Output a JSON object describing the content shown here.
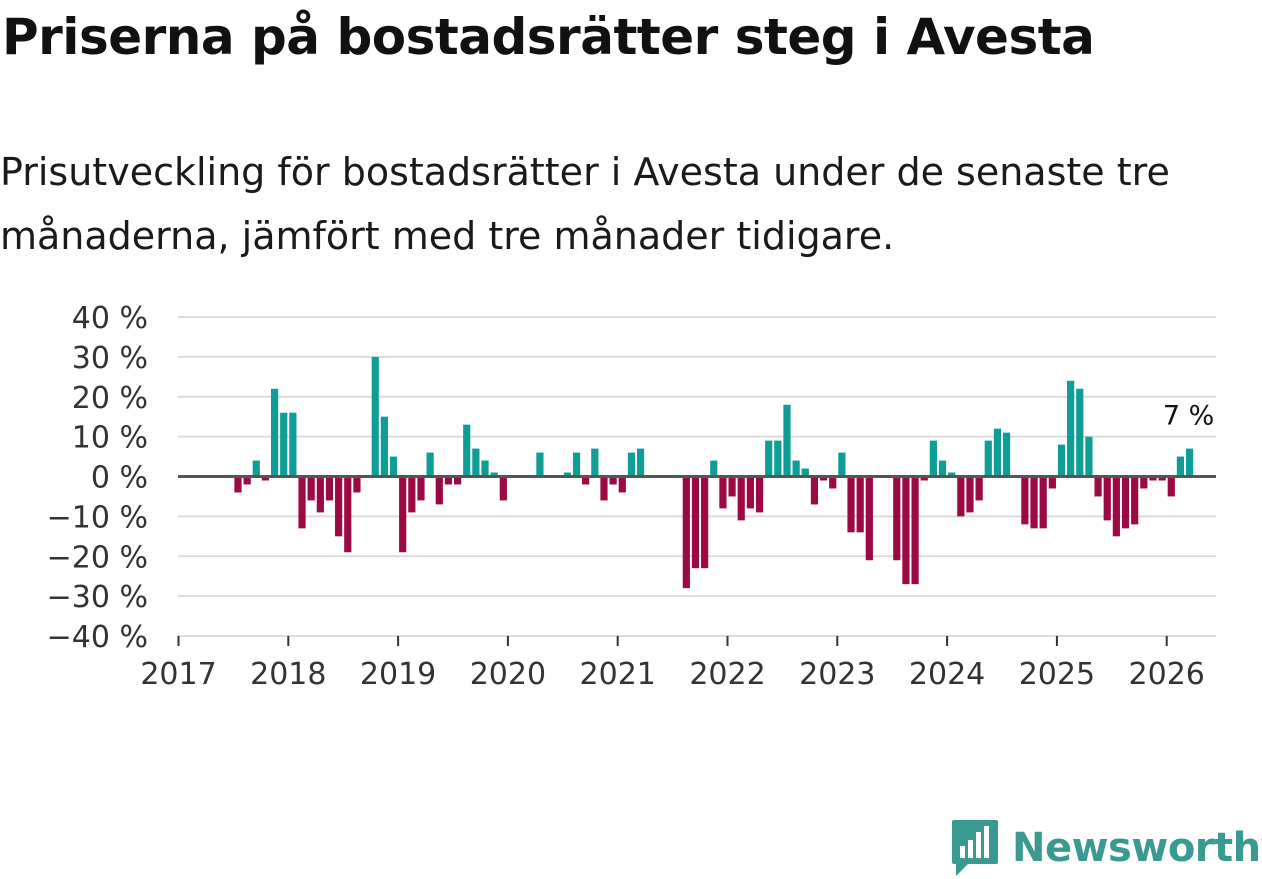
{
  "colors": {
    "positive": "#0f9e96",
    "negative": "#9c0a45",
    "grid": "#dcdcdc",
    "zero": "#555555",
    "brand": "#3a9a91"
  },
  "brand": {
    "name": "Newsworthy",
    "icon": "bar-chart-bubble-icon"
  },
  "chart_data": {
    "type": "bar",
    "title": "Priserna på bostadsrätter steg i Avesta",
    "subtitle": "Prisutveckling för bostadsrätter i Avesta under de senaste tre månaderna, jämfört med tre månader tidigare.",
    "ylim": [
      -40,
      40
    ],
    "yticks": [
      {
        "value": 40,
        "label": "40 %"
      },
      {
        "value": 30,
        "label": "30 %"
      },
      {
        "value": 20,
        "label": "20 %"
      },
      {
        "value": 10,
        "label": "10 %"
      },
      {
        "value": 0,
        "label": "0 %"
      },
      {
        "value": -10,
        "label": "−10 %"
      },
      {
        "value": -20,
        "label": "−20 %"
      },
      {
        "value": -30,
        "label": "−30 %"
      },
      {
        "value": -40,
        "label": "−40 %"
      }
    ],
    "xticks": [
      "2017",
      "2018",
      "2019",
      "2020",
      "2021",
      "2022",
      "2023",
      "2024",
      "2025",
      "2026"
    ],
    "start": "2017-01",
    "values": [
      null,
      null,
      null,
      null,
      null,
      null,
      -4,
      -2,
      4,
      -1,
      22,
      16,
      16,
      -13,
      -6,
      -9,
      -6,
      -15,
      -19,
      -4,
      null,
      30,
      15,
      5,
      -19,
      -9,
      -6,
      6,
      -7,
      -2,
      -2,
      13,
      7,
      4,
      1,
      -6,
      null,
      null,
      null,
      6,
      null,
      null,
      1,
      6,
      -2,
      7,
      -6,
      -2,
      -4,
      6,
      7,
      null,
      null,
      null,
      null,
      -28,
      -23,
      -23,
      4,
      -8,
      -5,
      -11,
      -8,
      -9,
      9,
      9,
      18,
      4,
      2,
      -7,
      -1,
      -3,
      6,
      -14,
      -14,
      -21,
      null,
      null,
      -21,
      -27,
      -27,
      -1,
      9,
      4,
      1,
      -10,
      -9,
      -6,
      9,
      12,
      11,
      null,
      -12,
      -13,
      -13,
      -3,
      8,
      24,
      22,
      10,
      -5,
      -11,
      -15,
      -13,
      -12,
      -3,
      -1,
      -1,
      -5,
      5,
      7
    ],
    "annotation": {
      "text": "7 %",
      "value": 7
    }
  }
}
